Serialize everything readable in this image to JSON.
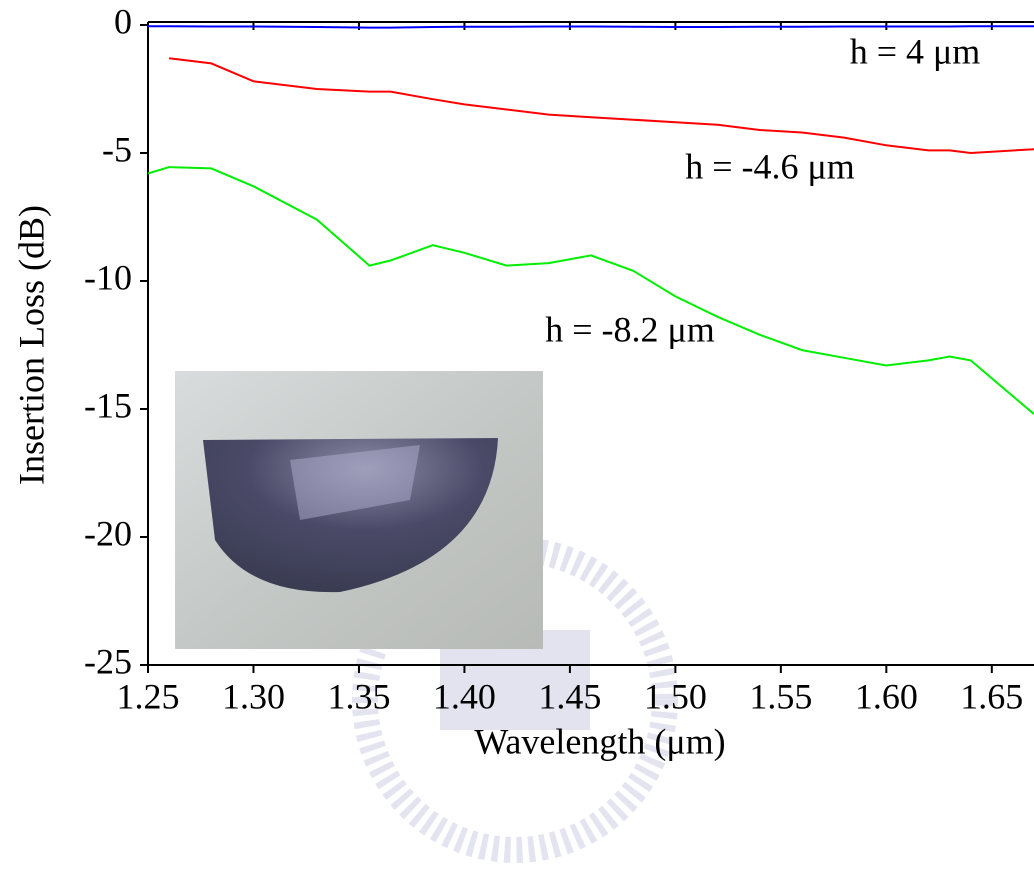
{
  "chart_data": {
    "type": "line",
    "x_label": "Wavelength (μm)",
    "y_label": "Insertion Loss (dB)",
    "x": [
      1.25,
      1.26,
      1.28,
      1.3,
      1.33,
      1.355,
      1.365,
      1.385,
      1.4,
      1.42,
      1.44,
      1.46,
      1.48,
      1.5,
      1.52,
      1.54,
      1.56,
      1.58,
      1.6,
      1.62,
      1.63,
      1.64,
      1.67
    ],
    "series": [
      {
        "name": "h = 4 μm",
        "color": "#0000ff",
        "values": [
          -0.05,
          -0.05,
          -0.06,
          -0.06,
          -0.08,
          -0.1,
          -0.1,
          -0.08,
          -0.07,
          -0.07,
          -0.06,
          -0.06,
          -0.07,
          -0.08,
          -0.08,
          -0.07,
          -0.07,
          -0.06,
          -0.06,
          -0.06,
          -0.06,
          -0.05,
          -0.05
        ]
      },
      {
        "name": "h = -4.6 μm",
        "color": "#ff0000",
        "values": [
          null,
          -1.3,
          -1.5,
          -2.2,
          -2.5,
          -2.6,
          -2.6,
          -2.9,
          -3.1,
          -3.3,
          -3.5,
          -3.6,
          -3.7,
          -3.8,
          -3.9,
          -4.1,
          -4.2,
          -4.4,
          -4.7,
          -4.9,
          -4.9,
          -5.0,
          -4.85
        ]
      },
      {
        "name": "h = -8.2 μm",
        "color": "#00ee00",
        "values": [
          -5.8,
          -5.55,
          -5.6,
          -6.3,
          -7.6,
          -9.4,
          -9.2,
          -8.6,
          -8.9,
          -9.4,
          -9.3,
          -9.0,
          -9.6,
          -10.6,
          -11.4,
          -12.1,
          -12.7,
          -13.0,
          -13.3,
          -13.1,
          -12.95,
          -13.1,
          -15.2
        ]
      }
    ],
    "xlim": [
      1.25,
      1.67
    ],
    "xticks": [
      1.25,
      {
        "value": 1.3,
        "label": "1.30"
      },
      1.35,
      {
        "value": 1.4,
        "label": "1.40"
      },
      1.45,
      {
        "value": 1.5,
        "label": "1.50"
      },
      1.55,
      {
        "value": 1.6,
        "label": "1.60"
      },
      1.65
    ],
    "ylim": [
      -25,
      0
    ],
    "yticks": [
      0,
      -5,
      -10,
      -15,
      -20,
      -25
    ],
    "grid": false
  }
}
